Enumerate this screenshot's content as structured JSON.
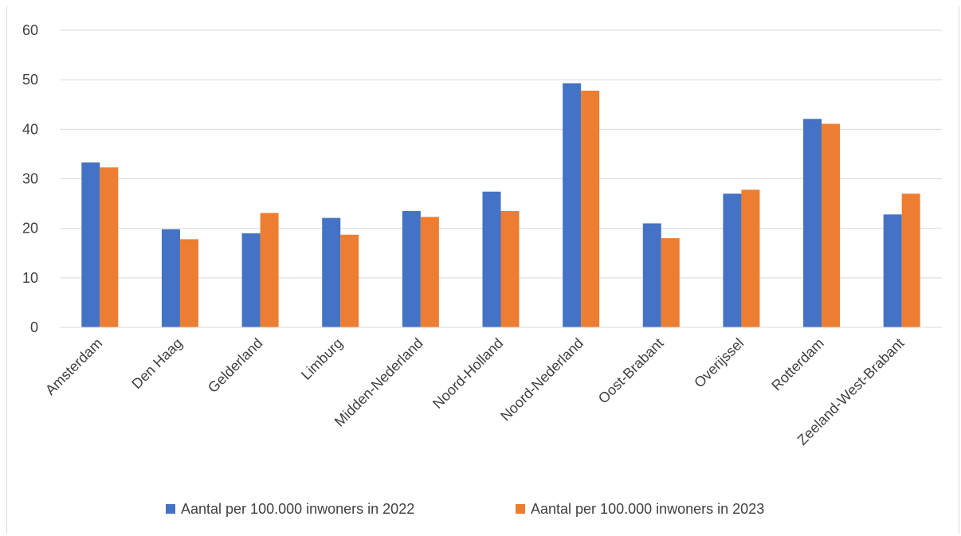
{
  "chart_data": {
    "type": "bar",
    "title": "",
    "xlabel": "",
    "ylabel": "",
    "ylim": [
      0,
      60
    ],
    "yticks": [
      0,
      10,
      20,
      30,
      40,
      50,
      60
    ],
    "grid": true,
    "legend_position": "bottom",
    "categories": [
      "Amsterdam",
      "Den Haag",
      "Gelderland",
      "Limburg",
      "Midden-Nederland",
      "Noord-Holland",
      "Noord-Nederland",
      "Oost-Brabant",
      "Overijssel",
      "Rotterdam",
      "Zeeland-West-Brabant"
    ],
    "series": [
      {
        "name": "Aantal per 100.000 inwoners in 2022",
        "color": "#4472c4",
        "values": [
          33.3,
          19.8,
          19.0,
          22.1,
          23.5,
          27.4,
          49.3,
          21.0,
          27.0,
          42.1,
          22.8
        ]
      },
      {
        "name": "Aantal per 100.000 inwoners in 2023",
        "color": "#ed7d31",
        "values": [
          32.3,
          17.8,
          23.1,
          18.7,
          22.3,
          23.5,
          47.8,
          18.0,
          27.8,
          41.1,
          27.0
        ]
      }
    ]
  }
}
